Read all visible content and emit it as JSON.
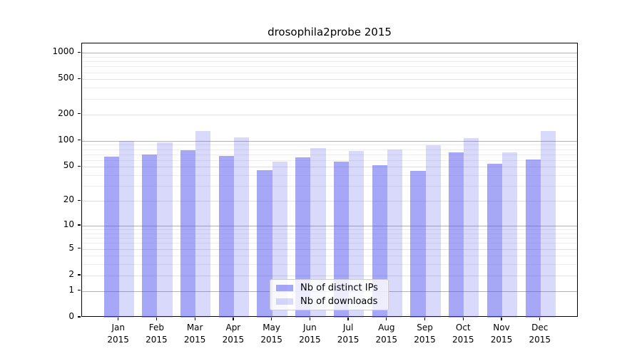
{
  "title": "drosophila2probe 2015",
  "colors": {
    "bar_base": "#5050f0",
    "ips_bar_rgba": "rgba(80,80,240,0.50)",
    "downloads_bar_rgba": "rgba(80,80,240,0.22)",
    "gridline_major": "#b2b2b2",
    "gridline_labeled": "#e0e0e0",
    "gridline_minor": "#eeeeee"
  },
  "chart_data": {
    "type": "bar",
    "title": "drosophila2probe 2015",
    "scale": "log1p",
    "categories": [
      "Jan",
      "Feb",
      "Mar",
      "Apr",
      "May",
      "Jun",
      "Jul",
      "Aug",
      "Sep",
      "Oct",
      "Nov",
      "Dec"
    ],
    "year_label": "2015",
    "series": [
      {
        "name": "Nb of distinct IPs",
        "values": [
          66,
          69,
          78,
          67,
          46,
          65,
          58,
          52,
          45,
          73,
          54,
          61
        ]
      },
      {
        "name": "Nb of downloads",
        "values": [
          100,
          95,
          129,
          110,
          58,
          83,
          77,
          80,
          89,
          108,
          74,
          129
        ]
      }
    ],
    "yticks": [
      0,
      1,
      2,
      5,
      10,
      20,
      50,
      100,
      200,
      500,
      1000
    ],
    "ytick_labels": [
      "0",
      "1",
      "2",
      "5",
      "10",
      "20",
      "50",
      "100",
      "200",
      "500",
      "1000"
    ],
    "decade_ticks": [
      1,
      10,
      100,
      1000
    ],
    "minor_gridlines": [
      3,
      4,
      6,
      7,
      8,
      9,
      30,
      40,
      60,
      70,
      80,
      90,
      300,
      400,
      600,
      700,
      800,
      900
    ],
    "ylim": [
      0,
      1290
    ],
    "grid": "on",
    "legend_position": "bottom-center",
    "xlabel": "",
    "ylabel": ""
  }
}
